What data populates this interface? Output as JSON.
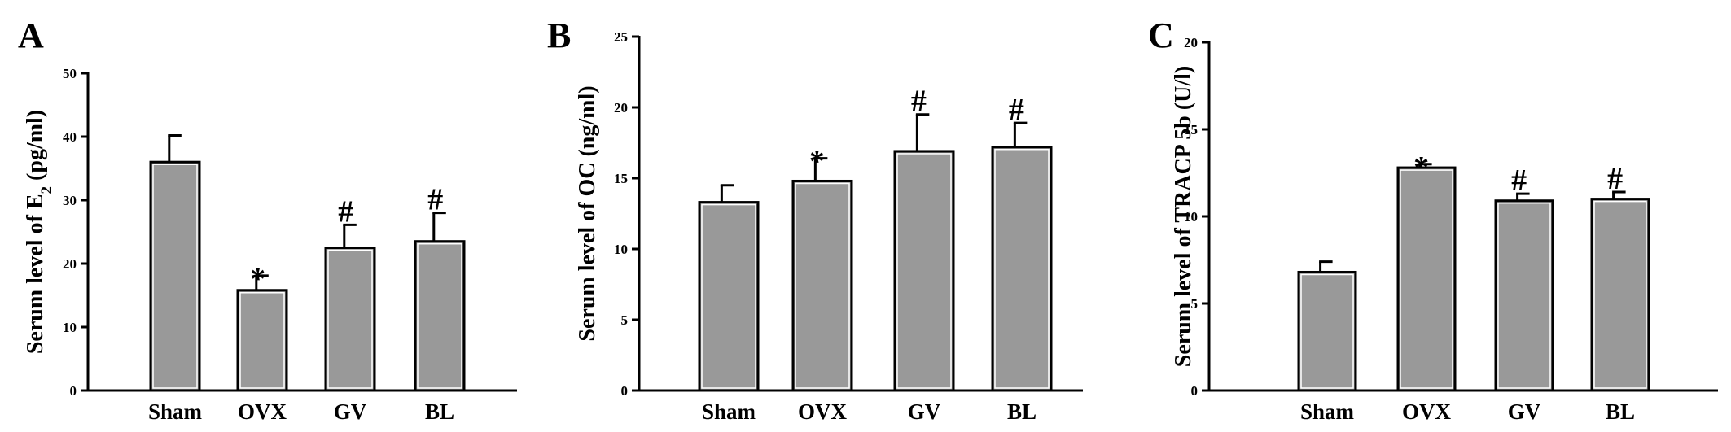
{
  "chart_data": [
    {
      "type": "bar",
      "panel": "A",
      "categories": [
        "Sham",
        "OVX",
        "GV",
        "BL"
      ],
      "values": [
        36,
        15.8,
        22.5,
        23.5
      ],
      "errors": [
        4.2,
        2.3,
        3.6,
        4.5
      ],
      "annotations": [
        "",
        "*",
        "#",
        "#"
      ],
      "ylabel_main": "Serum level of E",
      "ylabel_sub": "2",
      "ylabel_tail": " (pg/ml)",
      "xlabel": "",
      "ylim": [
        0,
        50
      ],
      "yticks": [
        "0",
        "10",
        "20",
        "30",
        "40",
        "50"
      ]
    },
    {
      "type": "bar",
      "panel": "B",
      "categories": [
        "Sham",
        "OVX",
        "GV",
        "BL"
      ],
      "values": [
        13.3,
        14.8,
        16.9,
        17.2
      ],
      "errors": [
        1.2,
        1.6,
        2.6,
        1.7
      ],
      "annotations": [
        "",
        "*",
        "#",
        "#"
      ],
      "ylabel_main": "Serum level of OC (ng/ml)",
      "ylabel_sub": "",
      "ylabel_tail": "",
      "xlabel": "",
      "ylim": [
        0,
        25
      ],
      "yticks": [
        "0",
        "5",
        "10",
        "15",
        "20",
        "25"
      ]
    },
    {
      "type": "bar",
      "panel": "C",
      "categories": [
        "Sham",
        "OVX",
        "GV",
        "BL"
      ],
      "values": [
        6.8,
        12.8,
        10.9,
        11.0
      ],
      "errors": [
        0.6,
        0.2,
        0.4,
        0.4
      ],
      "annotations": [
        "",
        "*",
        "#",
        "#"
      ],
      "ylabel_main": "Serum level of TRACP 5b (U/l)",
      "ylabel_sub": "",
      "ylabel_tail": "",
      "xlabel": "",
      "ylim": [
        0,
        20
      ],
      "yticks": [
        "0",
        "5",
        "10",
        "15",
        "20"
      ]
    }
  ]
}
